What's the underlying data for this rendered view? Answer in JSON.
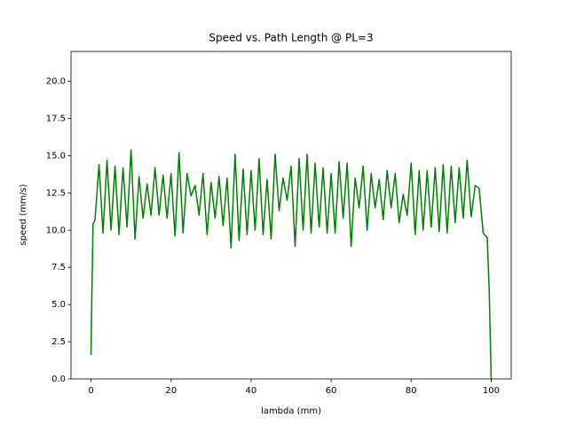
{
  "chart_data": {
    "type": "line",
    "title": "Speed vs. Path Length @ PL=3",
    "x_label": "lambda (mm)",
    "y_label": "speed (mm/s)",
    "color": "#008000",
    "x": [
      0,
      0.2,
      0.5,
      1,
      2,
      3,
      4,
      5,
      6,
      7,
      8,
      9,
      10,
      11,
      12,
      13,
      14,
      15,
      16,
      17,
      18,
      19,
      20,
      21,
      22,
      23,
      24,
      25,
      26,
      27,
      28,
      29,
      30,
      31,
      32,
      33,
      34,
      35,
      36,
      37,
      38,
      39,
      40,
      41,
      42,
      43,
      44,
      45,
      46,
      47,
      48,
      49,
      50,
      51,
      52,
      53,
      54,
      55,
      56,
      57,
      58,
      59,
      60,
      61,
      62,
      63,
      64,
      65,
      66,
      67,
      68,
      69,
      70,
      71,
      72,
      73,
      74,
      75,
      76,
      77,
      78,
      79,
      80,
      81,
      82,
      83,
      84,
      85,
      86,
      87,
      88,
      89,
      90,
      91,
      92,
      93,
      94,
      95,
      96,
      97,
      98,
      99,
      99.5,
      100
    ],
    "values": [
      1.6,
      5.3,
      10.4,
      10.7,
      14.4,
      9.8,
      14.7,
      10.0,
      14.3,
      9.7,
      14.2,
      10.2,
      15.4,
      9.4,
      13.6,
      10.8,
      13.1,
      11.0,
      14.2,
      11.0,
      13.7,
      10.8,
      13.8,
      9.6,
      15.2,
      9.8,
      13.8,
      12.3,
      13.0,
      11.0,
      13.8,
      9.7,
      13.2,
      10.8,
      13.6,
      10.3,
      13.5,
      8.8,
      15.1,
      9.3,
      14.1,
      9.7,
      14.0,
      10.0,
      14.8,
      9.7,
      13.4,
      9.4,
      15.1,
      11.3,
      13.5,
      12.0,
      14.3,
      8.9,
      14.8,
      10.0,
      15.1,
      9.8,
      14.5,
      10.2,
      14.2,
      9.8,
      13.8,
      9.8,
      14.6,
      10.8,
      14.5,
      8.9,
      13.5,
      11.5,
      14.3,
      10.0,
      13.8,
      11.5,
      13.4,
      10.7,
      14.0,
      11.5,
      13.8,
      10.5,
      12.4,
      11.0,
      14.5,
      9.7,
      14.0,
      10.0,
      14.0,
      10.2,
      14.2,
      9.9,
      14.4,
      9.8,
      14.3,
      10.5,
      14.2,
      10.8,
      14.7,
      10.9,
      13.0,
      12.8,
      9.8,
      9.5,
      6.0,
      0.0
    ],
    "xlim": [
      -5,
      105
    ],
    "xticks": [
      0,
      20,
      40,
      60,
      80,
      100
    ],
    "ylim": [
      0,
      22
    ],
    "yticks": [
      {
        "value": 0,
        "label": "0.0"
      },
      {
        "value": 2.5,
        "label": "2.5"
      },
      {
        "value": 5,
        "label": "5.0"
      },
      {
        "value": 7.5,
        "label": "7.5"
      },
      {
        "value": 10,
        "label": "10.0"
      },
      {
        "value": 12.5,
        "label": "12.5"
      },
      {
        "value": 15,
        "label": "15.0"
      },
      {
        "value": 17.5,
        "label": "17.5"
      },
      {
        "value": 20,
        "label": "20.0"
      }
    ]
  }
}
